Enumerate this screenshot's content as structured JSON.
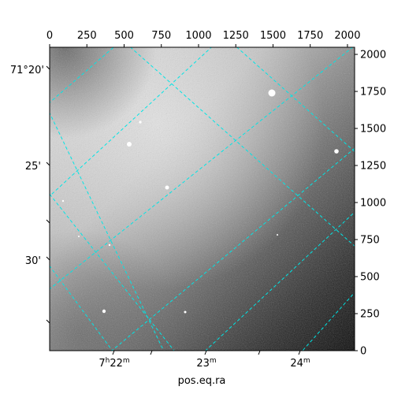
{
  "figure": {
    "xlabel": "pos.eq.ra",
    "ylabel": "",
    "top_axis": {
      "ticks": [
        "0",
        "250",
        "500",
        "750",
        "1000",
        "1250",
        "1500",
        "1750",
        "2000"
      ],
      "values": [
        0,
        250,
        500,
        750,
        1000,
        1250,
        1500,
        1750,
        2000
      ],
      "range": [
        0,
        2048
      ]
    },
    "right_axis": {
      "ticks": [
        "0",
        "250",
        "500",
        "750",
        "1000",
        "1250",
        "1500",
        "1750",
        "2000"
      ],
      "values": [
        0,
        250,
        500,
        750,
        1000,
        1250,
        1500,
        1750,
        2000
      ],
      "range": [
        0,
        2048
      ]
    },
    "ra_ticks": [
      {
        "hours": "7",
        "minutes": "22",
        "hours_unit": "h",
        "minutes_unit": "m",
        "show_hours": true
      },
      {
        "hours": "",
        "minutes": "23",
        "hours_unit": "",
        "minutes_unit": "m",
        "show_hours": false
      },
      {
        "hours": "",
        "minutes": "24",
        "hours_unit": "",
        "minutes_unit": "m",
        "show_hours": false
      }
    ],
    "dec_ticks": [
      "71°20'",
      "25'",
      "30'"
    ],
    "colors": {
      "grid": "#00e5e5",
      "frame": "#000000"
    }
  }
}
